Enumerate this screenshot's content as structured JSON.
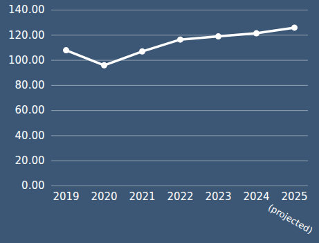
{
  "chart_data": {
    "type": "line",
    "categories": [
      "2019",
      "2020",
      "2021",
      "2022",
      "2023",
      "2024",
      "2025"
    ],
    "values": [
      108,
      96,
      107,
      116.5,
      119,
      121.5,
      126
    ],
    "color": "#ffffff",
    "marker": "circle",
    "ylim": [
      0,
      140
    ],
    "yticks": [
      {
        "value": 0,
        "label": "0.00"
      },
      {
        "value": 20,
        "label": "20.00"
      },
      {
        "value": 40,
        "label": "40.00"
      },
      {
        "value": 60,
        "label": "60.00"
      },
      {
        "value": 80,
        "label": "80.00"
      },
      {
        "value": 100,
        "label": "100.00"
      },
      {
        "value": 120,
        "label": "120.00"
      },
      {
        "value": 140,
        "label": "140.00"
      }
    ],
    "grid": true,
    "annotations": [
      {
        "x": "2025",
        "text": "(projected)"
      }
    ]
  }
}
